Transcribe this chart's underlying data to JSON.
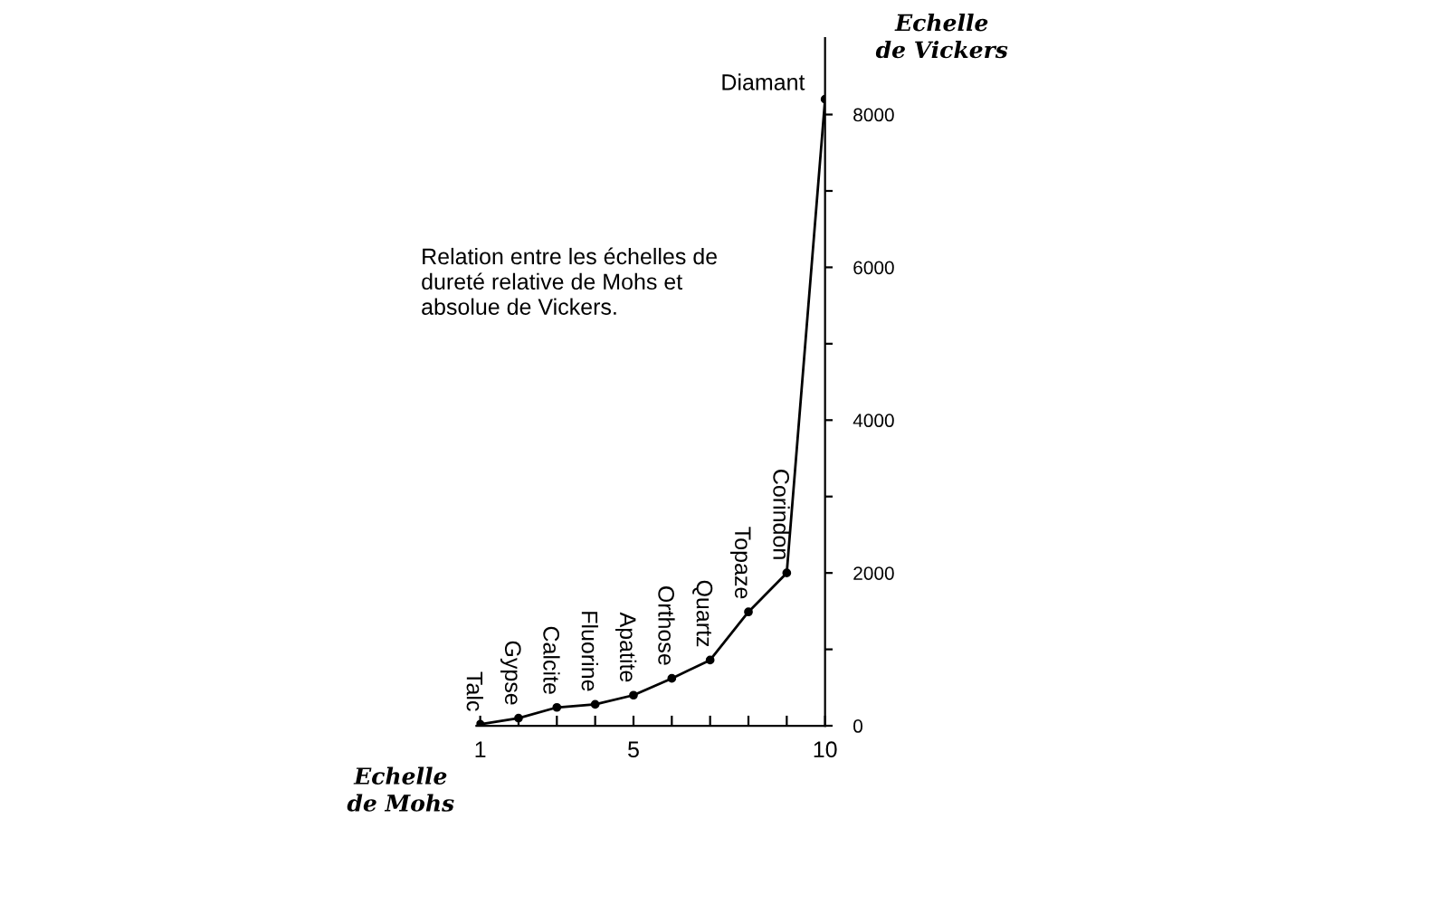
{
  "chart_data": {
    "type": "line",
    "xlabel": "Echelle\nde Mohs",
    "ylabel": "Echelle\nde Vickers",
    "annotations": [
      "Relation entre les échelles de\ndureté relative de Mohs et\nabsolue de Vickers.",
      {
        "text": "Talc",
        "x": 1,
        "y": 20
      },
      {
        "text": "Gypse",
        "x": 2,
        "y": 100
      },
      {
        "text": "Calcite",
        "x": 3,
        "y": 240
      },
      {
        "text": "Fluorine",
        "x": 4,
        "y": 280
      },
      {
        "text": "Apatite",
        "x": 5,
        "y": 400
      },
      {
        "text": "Orthose",
        "x": 6,
        "y": 620
      },
      {
        "text": "Quartz",
        "x": 7,
        "y": 860
      },
      {
        "text": "Topaze",
        "x": 8,
        "y": 1490
      },
      {
        "text": "Corindon",
        "x": 9,
        "y": 2000
      },
      {
        "text": "Diamant",
        "x": 10,
        "y": 8200
      }
    ],
    "series": [
      {
        "color": "#000000",
        "x": [
          1,
          2,
          3,
          4,
          5,
          6,
          7,
          8,
          9,
          10
        ],
        "values": [
          20,
          100,
          240,
          280,
          400,
          620,
          860,
          1490,
          2000,
          8200
        ]
      }
    ],
    "xlim": [
      0.9,
      10
    ],
    "ylim": [
      0,
      9000
    ],
    "xticks": [
      1,
      {
        "value": 2,
        "label": null
      },
      {
        "value": 3,
        "label": null
      },
      {
        "value": 4,
        "label": null
      },
      5,
      {
        "value": 6,
        "label": null
      },
      {
        "value": 7,
        "label": null
      },
      {
        "value": 8,
        "label": null
      },
      {
        "value": 9,
        "label": null
      },
      10
    ],
    "yticks": [
      0,
      {
        "value": 1000,
        "label": null
      },
      2000,
      {
        "value": 3000,
        "label": null
      },
      4000,
      {
        "value": 5000,
        "label": null
      },
      6000,
      {
        "value": 7000,
        "label": null
      },
      8000
    ],
    "marker": "circle",
    "line_style": "solid",
    "grid": false
  }
}
